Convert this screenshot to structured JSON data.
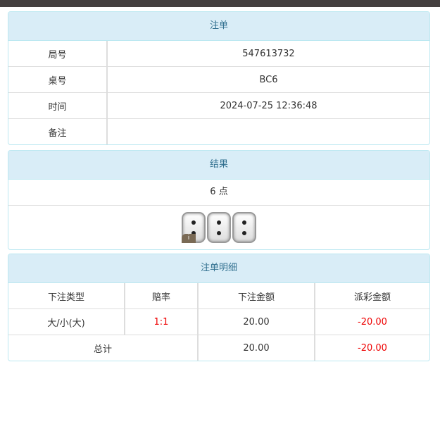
{
  "order": {
    "title": "注单",
    "rows": [
      {
        "label": "局号",
        "value": "547613732"
      },
      {
        "label": "桌号",
        "value": "BC6"
      },
      {
        "label": "时间",
        "value": "2024-07-25 12:36:48"
      },
      {
        "label": "备注",
        "value": ""
      }
    ]
  },
  "result": {
    "title": "结果",
    "points": "6 点",
    "dice": [
      2,
      2,
      2
    ],
    "info_icon": "i"
  },
  "detail": {
    "title": "注单明细",
    "headers": [
      "下注类型",
      "赔率",
      "下注金额",
      "派彩金额"
    ],
    "rows": [
      {
        "type": "大/小(大)",
        "odds": "1:1",
        "bet": "20.00",
        "payout": "-20.00"
      }
    ],
    "total": {
      "label": "总计",
      "bet": "20.00",
      "payout": "-20.00"
    },
    "colors": {
      "negative": "#ee0000",
      "odds": "#ee0000"
    }
  }
}
